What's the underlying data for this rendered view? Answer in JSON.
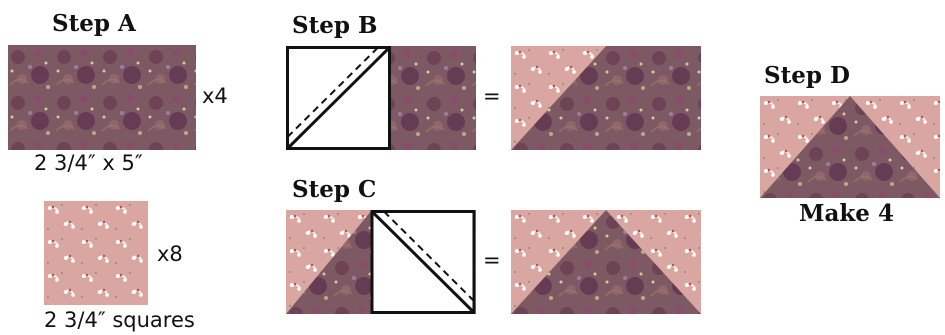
{
  "steps": {
    "a": {
      "title": "Step A",
      "rect_qty": "x4",
      "rect_size": "2 3/4″ x 5″",
      "square_qty": "x8",
      "square_size": "2 3/4″ squares"
    },
    "b": {
      "title": "Step B",
      "equals": "="
    },
    "c": {
      "title": "Step C",
      "equals": "="
    },
    "d": {
      "title": "Step D",
      "note": "Make 4"
    }
  },
  "colors": {
    "dark_print": "#7d5a63",
    "pink_print": "#d9a6a1",
    "outline": "#111111"
  },
  "icons": [
    "floral-pattern-dark",
    "floral-pattern-pink",
    "dashed-sewing-line"
  ]
}
